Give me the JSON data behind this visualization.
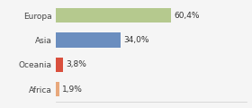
{
  "categories": [
    "Europa",
    "Asia",
    "Oceania",
    "Africa"
  ],
  "values": [
    60.4,
    34.0,
    3.8,
    1.9
  ],
  "labels": [
    "60,4%",
    "34,0%",
    "3,8%",
    "1,9%"
  ],
  "colors": [
    "#b5c98e",
    "#6b8ebf",
    "#d94f3d",
    "#e8a87c"
  ],
  "xlim": [
    0,
    100
  ],
  "background_color": "#f5f5f5",
  "bar_height": 0.6,
  "label_fontsize": 6.5,
  "category_fontsize": 6.5,
  "figsize": [
    2.8,
    1.2
  ],
  "dpi": 100
}
